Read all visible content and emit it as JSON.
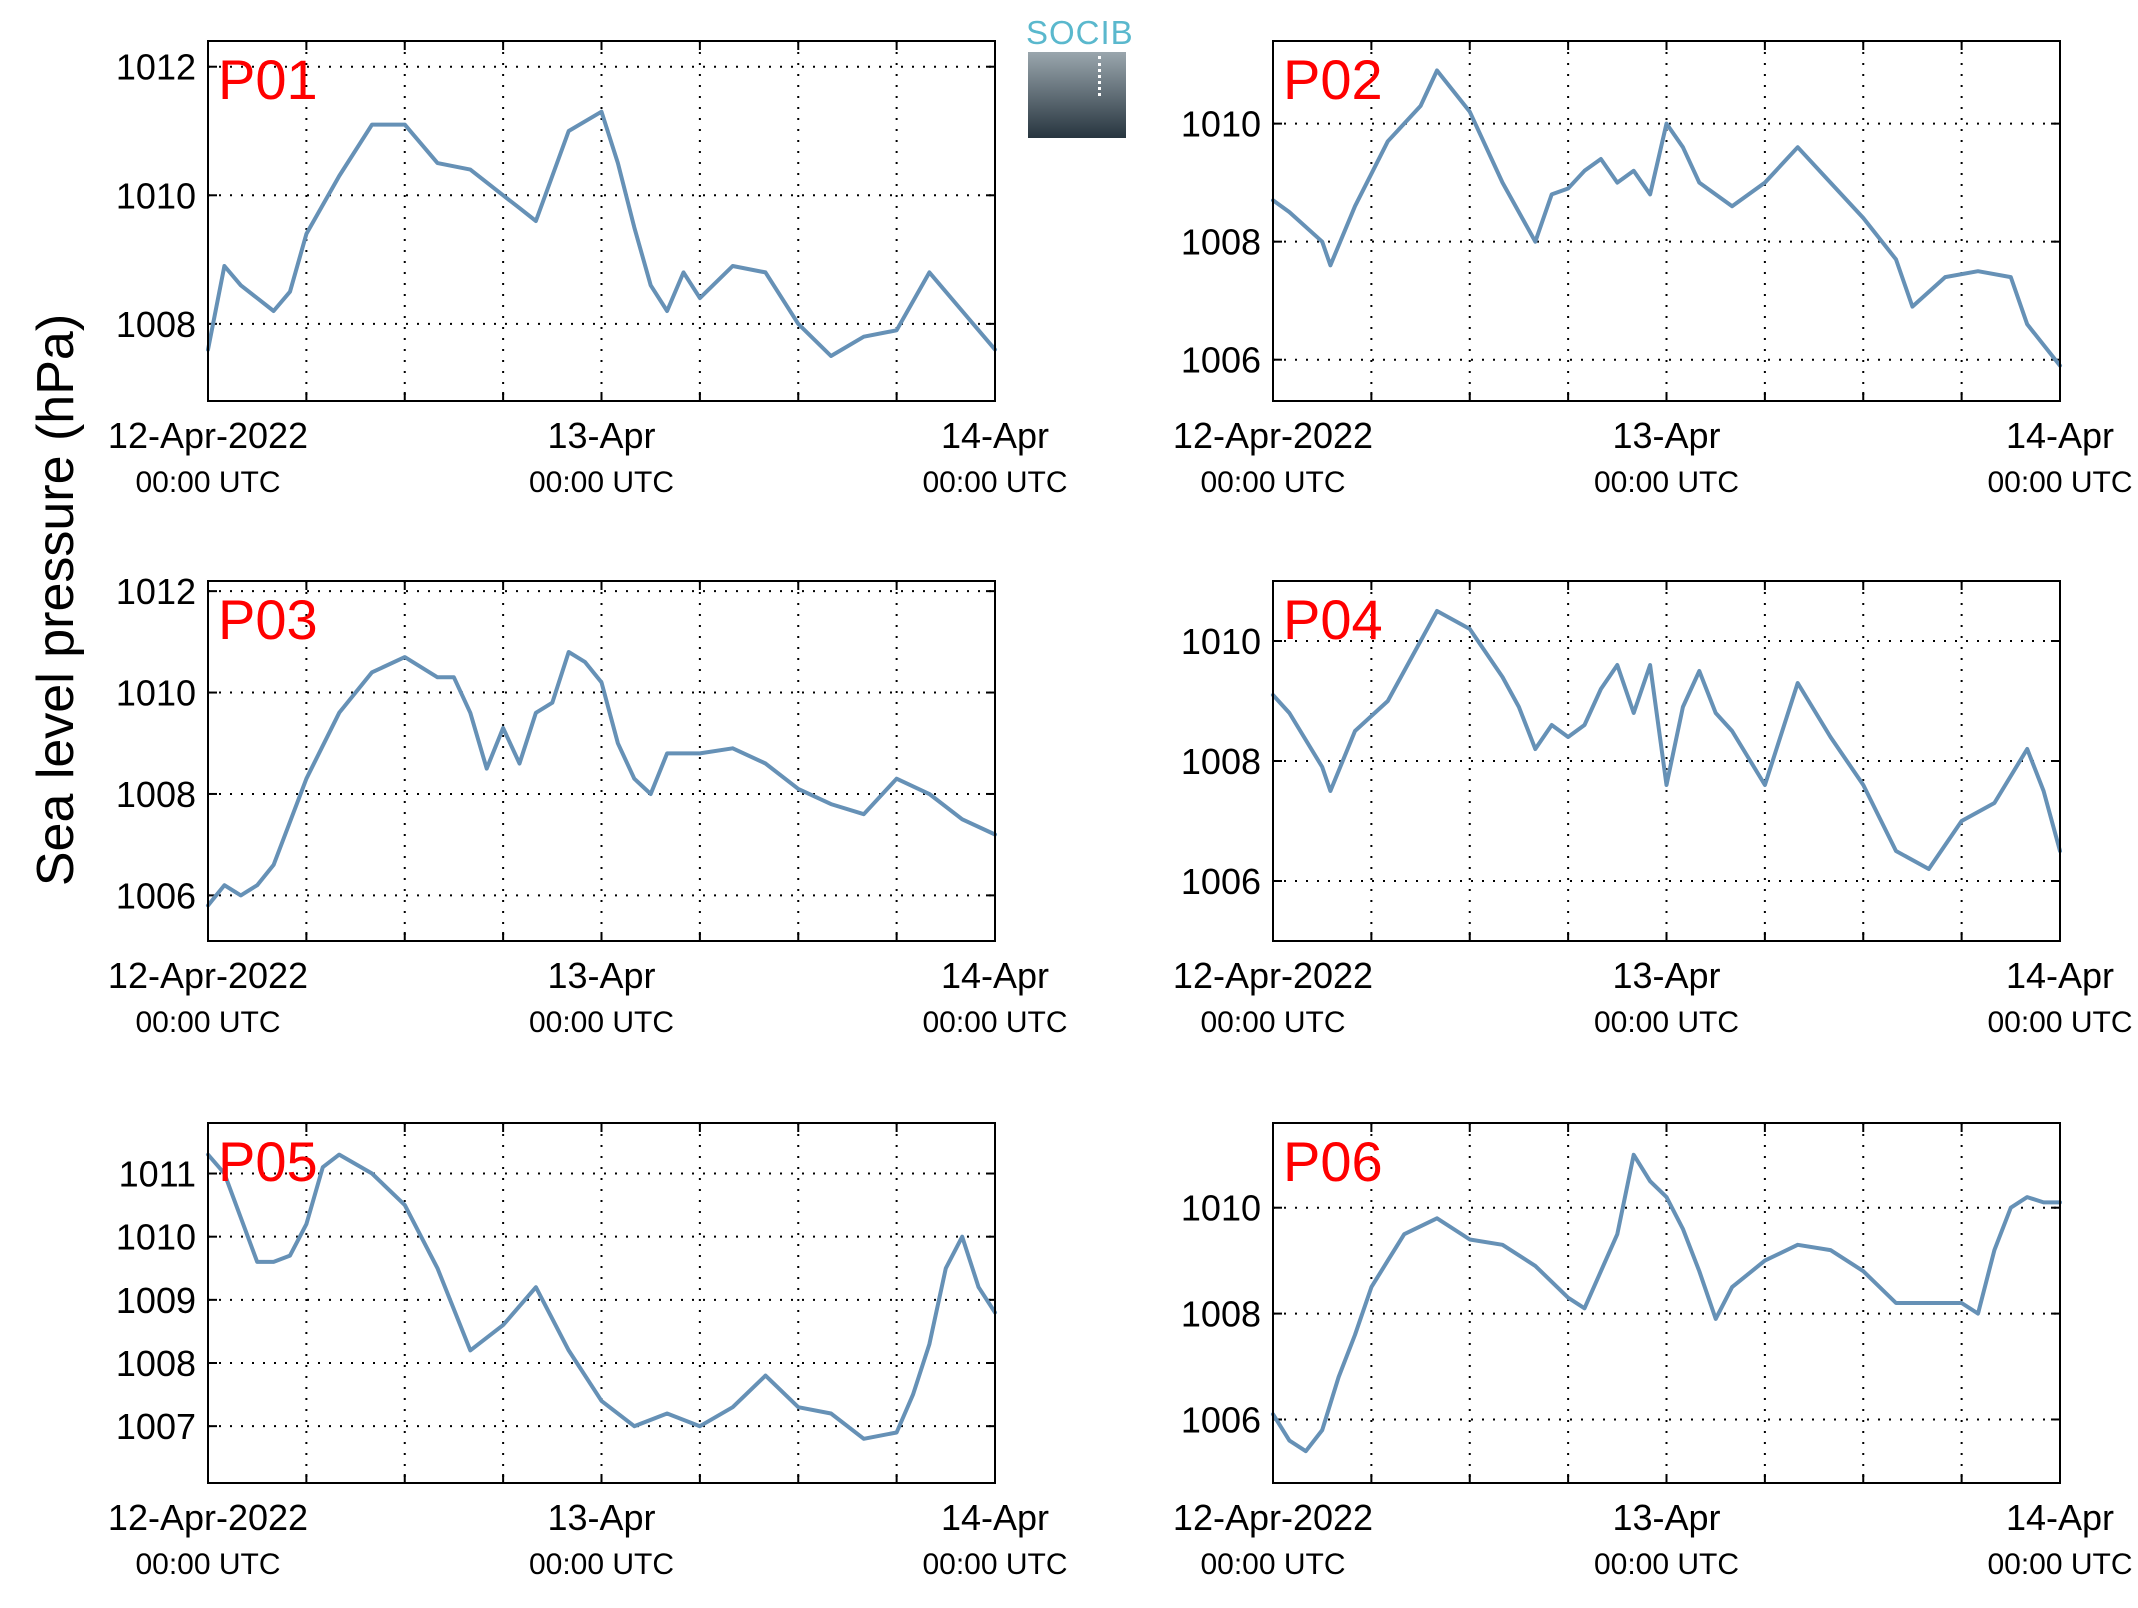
{
  "logo": {
    "text": "SOCIB"
  },
  "y_axis_label": "Sea level pressure (hPa)",
  "colors": {
    "series": "#6691b6",
    "panel_label": "#ff0000",
    "grid": "#000000"
  },
  "x_tick_labels": [
    {
      "date": "12-Apr-2022",
      "time": "00:00 UTC"
    },
    {
      "date": "13-Apr",
      "time": "00:00 UTC"
    },
    {
      "date": "14-Apr",
      "time": "00:00 UTC"
    }
  ],
  "chart_data": [
    {
      "type": "line",
      "label": "P01",
      "xlim": [
        "2022-04-12 00:00",
        "2022-04-14 00:00"
      ],
      "ylim": [
        1006.8,
        1012.4
      ],
      "yticks": [
        1008,
        1010,
        1012
      ],
      "grid": true,
      "x": [
        "2022-04-12 00:00",
        "2022-04-12 01:00",
        "2022-04-12 02:00",
        "2022-04-12 04:00",
        "2022-04-12 05:00",
        "2022-04-12 06:00",
        "2022-04-12 08:00",
        "2022-04-12 10:00",
        "2022-04-12 12:00",
        "2022-04-12 14:00",
        "2022-04-12 16:00",
        "2022-04-12 18:00",
        "2022-04-12 19:00",
        "2022-04-12 20:00",
        "2022-04-12 21:00",
        "2022-04-12 22:00",
        "2022-04-13 00:00",
        "2022-04-13 01:00",
        "2022-04-13 02:00",
        "2022-04-13 03:00",
        "2022-04-13 04:00",
        "2022-04-13 05:00",
        "2022-04-13 06:00",
        "2022-04-13 08:00",
        "2022-04-13 10:00",
        "2022-04-13 12:00",
        "2022-04-13 14:00",
        "2022-04-13 16:00",
        "2022-04-13 18:00",
        "2022-04-13 20:00",
        "2022-04-13 22:00",
        "2022-04-14 00:00"
      ],
      "y": [
        1007.6,
        1008.9,
        1008.6,
        1008.2,
        1008.5,
        1009.4,
        1010.3,
        1011.1,
        1011.1,
        1010.5,
        1010.4,
        1010.0,
        1009.8,
        1009.6,
        1010.3,
        1011.0,
        1011.3,
        1010.5,
        1009.5,
        1008.6,
        1008.2,
        1008.8,
        1008.4,
        1008.9,
        1008.8,
        1008.0,
        1007.5,
        1007.8,
        1007.9,
        1008.8,
        1008.2,
        1007.6
      ]
    },
    {
      "type": "line",
      "label": "P02",
      "xlim": [
        "2022-04-12 00:00",
        "2022-04-14 00:00"
      ],
      "ylim": [
        1005.3,
        1011.4
      ],
      "yticks": [
        1006,
        1008,
        1010
      ],
      "grid": true,
      "x": [
        "2022-04-12 00:00",
        "2022-04-12 01:00",
        "2022-04-12 03:00",
        "2022-04-12 03:30",
        "2022-04-12 05:00",
        "2022-04-12 07:00",
        "2022-04-12 09:00",
        "2022-04-12 10:00",
        "2022-04-12 12:00",
        "2022-04-12 14:00",
        "2022-04-12 15:00",
        "2022-04-12 16:00",
        "2022-04-12 17:00",
        "2022-04-12 18:00",
        "2022-04-12 19:00",
        "2022-04-12 20:00",
        "2022-04-12 21:00",
        "2022-04-12 22:00",
        "2022-04-12 23:00",
        "2022-04-13 00:00",
        "2022-04-13 01:00",
        "2022-04-13 02:00",
        "2022-04-13 04:00",
        "2022-04-13 06:00",
        "2022-04-13 08:00",
        "2022-04-13 10:00",
        "2022-04-13 12:00",
        "2022-04-13 14:00",
        "2022-04-13 15:00",
        "2022-04-13 17:00",
        "2022-04-13 19:00",
        "2022-04-13 21:00",
        "2022-04-13 22:00",
        "2022-04-14 00:00"
      ],
      "y": [
        1008.7,
        1008.5,
        1008.0,
        1007.6,
        1008.6,
        1009.7,
        1010.3,
        1010.9,
        1010.2,
        1009.0,
        1008.5,
        1008.0,
        1008.8,
        1008.9,
        1009.2,
        1009.4,
        1009.0,
        1009.2,
        1008.8,
        1010.0,
        1009.6,
        1009.0,
        1008.6,
        1009.0,
        1009.6,
        1009.0,
        1008.4,
        1007.7,
        1006.9,
        1007.4,
        1007.5,
        1007.4,
        1006.6,
        1005.9
      ]
    },
    {
      "type": "line",
      "label": "P03",
      "xlim": [
        "2022-04-12 00:00",
        "2022-04-14 00:00"
      ],
      "ylim": [
        1005.1,
        1012.2
      ],
      "yticks": [
        1006,
        1008,
        1010,
        1012
      ],
      "grid": true,
      "x": [
        "2022-04-12 00:00",
        "2022-04-12 01:00",
        "2022-04-12 02:00",
        "2022-04-12 03:00",
        "2022-04-12 04:00",
        "2022-04-12 06:00",
        "2022-04-12 08:00",
        "2022-04-12 10:00",
        "2022-04-12 12:00",
        "2022-04-12 14:00",
        "2022-04-12 15:00",
        "2022-04-12 16:00",
        "2022-04-12 17:00",
        "2022-04-12 18:00",
        "2022-04-12 19:00",
        "2022-04-12 20:00",
        "2022-04-12 21:00",
        "2022-04-12 22:00",
        "2022-04-12 23:00",
        "2022-04-13 00:00",
        "2022-04-13 01:00",
        "2022-04-13 02:00",
        "2022-04-13 03:00",
        "2022-04-13 04:00",
        "2022-04-13 06:00",
        "2022-04-13 08:00",
        "2022-04-13 10:00",
        "2022-04-13 12:00",
        "2022-04-13 14:00",
        "2022-04-13 16:00",
        "2022-04-13 18:00",
        "2022-04-13 20:00",
        "2022-04-13 22:00",
        "2022-04-14 00:00"
      ],
      "y": [
        1005.8,
        1006.2,
        1006.0,
        1006.2,
        1006.6,
        1008.3,
        1009.6,
        1010.4,
        1010.7,
        1010.3,
        1010.3,
        1009.6,
        1008.5,
        1009.3,
        1008.6,
        1009.6,
        1009.8,
        1010.8,
        1010.6,
        1010.2,
        1009.0,
        1008.3,
        1008.0,
        1008.8,
        1008.8,
        1008.9,
        1008.6,
        1008.1,
        1007.8,
        1007.6,
        1008.3,
        1008.0,
        1007.5,
        1007.2
      ]
    },
    {
      "type": "line",
      "label": "P04",
      "xlim": [
        "2022-04-12 00:00",
        "2022-04-14 00:00"
      ],
      "ylim": [
        1005.0,
        1011.0
      ],
      "yticks": [
        1006,
        1008,
        1010
      ],
      "grid": true,
      "x": [
        "2022-04-12 00:00",
        "2022-04-12 01:00",
        "2022-04-12 03:00",
        "2022-04-12 03:30",
        "2022-04-12 05:00",
        "2022-04-12 07:00",
        "2022-04-12 09:00",
        "2022-04-12 10:00",
        "2022-04-12 12:00",
        "2022-04-12 14:00",
        "2022-04-12 15:00",
        "2022-04-12 16:00",
        "2022-04-12 17:00",
        "2022-04-12 18:00",
        "2022-04-12 19:00",
        "2022-04-12 20:00",
        "2022-04-12 21:00",
        "2022-04-12 22:00",
        "2022-04-12 23:00",
        "2022-04-13 00:00",
        "2022-04-13 01:00",
        "2022-04-13 02:00",
        "2022-04-13 03:00",
        "2022-04-13 04:00",
        "2022-04-13 06:00",
        "2022-04-13 08:00",
        "2022-04-13 10:00",
        "2022-04-13 12:00",
        "2022-04-13 14:00",
        "2022-04-13 16:00",
        "2022-04-13 18:00",
        "2022-04-13 20:00",
        "2022-04-13 22:00",
        "2022-04-13 23:00",
        "2022-04-14 00:00"
      ],
      "y": [
        1009.1,
        1008.8,
        1007.9,
        1007.5,
        1008.5,
        1009.0,
        1010.0,
        1010.5,
        1010.2,
        1009.4,
        1008.9,
        1008.2,
        1008.6,
        1008.4,
        1008.6,
        1009.2,
        1009.6,
        1008.8,
        1009.6,
        1007.6,
        1008.9,
        1009.5,
        1008.8,
        1008.5,
        1007.6,
        1009.3,
        1008.4,
        1007.6,
        1006.5,
        1006.2,
        1007.0,
        1007.3,
        1008.2,
        1007.5,
        1006.5
      ]
    },
    {
      "type": "line",
      "label": "P05",
      "xlim": [
        "2022-04-12 00:00",
        "2022-04-14 00:00"
      ],
      "ylim": [
        1006.1,
        1011.8
      ],
      "yticks": [
        1007,
        1008,
        1009,
        1010,
        1011
      ],
      "grid": true,
      "x": [
        "2022-04-12 00:00",
        "2022-04-12 01:00",
        "2022-04-12 02:00",
        "2022-04-12 03:00",
        "2022-04-12 04:00",
        "2022-04-12 05:00",
        "2022-04-12 06:00",
        "2022-04-12 07:00",
        "2022-04-12 08:00",
        "2022-04-12 10:00",
        "2022-04-12 12:00",
        "2022-04-12 14:00",
        "2022-04-12 16:00",
        "2022-04-12 18:00",
        "2022-04-12 20:00",
        "2022-04-12 22:00",
        "2022-04-13 00:00",
        "2022-04-13 02:00",
        "2022-04-13 04:00",
        "2022-04-13 06:00",
        "2022-04-13 08:00",
        "2022-04-13 10:00",
        "2022-04-13 12:00",
        "2022-04-13 14:00",
        "2022-04-13 16:00",
        "2022-04-13 18:00",
        "2022-04-13 19:00",
        "2022-04-13 20:00",
        "2022-04-13 21:00",
        "2022-04-13 22:00",
        "2022-04-13 23:00",
        "2022-04-14 00:00"
      ],
      "y": [
        1011.3,
        1011.0,
        1010.3,
        1009.6,
        1009.6,
        1009.7,
        1010.2,
        1011.1,
        1011.3,
        1011.0,
        1010.5,
        1009.5,
        1008.2,
        1008.6,
        1009.2,
        1008.2,
        1007.4,
        1007.0,
        1007.2,
        1007.0,
        1007.3,
        1007.8,
        1007.3,
        1007.2,
        1006.8,
        1006.9,
        1007.5,
        1008.3,
        1009.5,
        1010.0,
        1009.2,
        1008.8
      ]
    },
    {
      "type": "line",
      "label": "P06",
      "xlim": [
        "2022-04-12 00:00",
        "2022-04-14 00:00"
      ],
      "ylim": [
        1004.8,
        1011.6
      ],
      "yticks": [
        1006,
        1008,
        1010
      ],
      "grid": true,
      "x": [
        "2022-04-12 00:00",
        "2022-04-12 01:00",
        "2022-04-12 02:00",
        "2022-04-12 03:00",
        "2022-04-12 04:00",
        "2022-04-12 05:00",
        "2022-04-12 06:00",
        "2022-04-12 07:00",
        "2022-04-12 08:00",
        "2022-04-12 10:00",
        "2022-04-12 12:00",
        "2022-04-12 14:00",
        "2022-04-12 16:00",
        "2022-04-12 18:00",
        "2022-04-12 19:00",
        "2022-04-12 20:00",
        "2022-04-12 21:00",
        "2022-04-12 22:00",
        "2022-04-12 23:00",
        "2022-04-13 00:00",
        "2022-04-13 01:00",
        "2022-04-13 02:00",
        "2022-04-13 03:00",
        "2022-04-13 04:00",
        "2022-04-13 06:00",
        "2022-04-13 08:00",
        "2022-04-13 10:00",
        "2022-04-13 12:00",
        "2022-04-13 14:00",
        "2022-04-13 16:00",
        "2022-04-13 18:00",
        "2022-04-13 19:00",
        "2022-04-13 20:00",
        "2022-04-13 21:00",
        "2022-04-13 22:00",
        "2022-04-13 23:00",
        "2022-04-14 00:00"
      ],
      "y": [
        1006.1,
        1005.6,
        1005.4,
        1005.8,
        1006.8,
        1007.6,
        1008.5,
        1009.0,
        1009.5,
        1009.8,
        1009.4,
        1009.3,
        1008.9,
        1008.3,
        1008.1,
        1008.8,
        1009.5,
        1011.0,
        1010.5,
        1010.2,
        1009.6,
        1008.8,
        1007.9,
        1008.5,
        1009.0,
        1009.3,
        1009.2,
        1008.8,
        1008.2,
        1008.2,
        1008.2,
        1008.0,
        1009.2,
        1010.0,
        1010.2,
        1010.1,
        1010.1
      ]
    }
  ]
}
